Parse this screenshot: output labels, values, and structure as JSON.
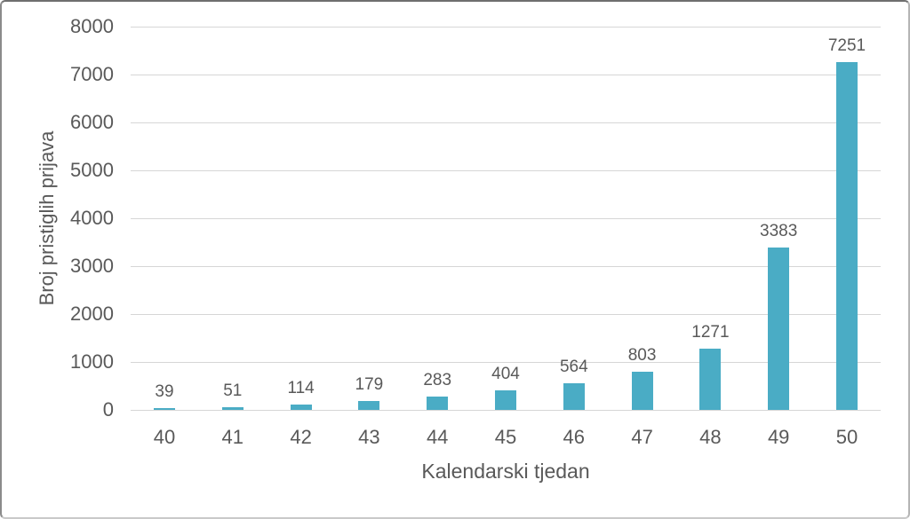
{
  "chart_data": {
    "type": "bar",
    "title": "",
    "xlabel": "Kalendarski tjedan",
    "ylabel": "Broj pristiglih prijava",
    "categories": [
      "40",
      "41",
      "42",
      "43",
      "44",
      "45",
      "46",
      "47",
      "48",
      "49",
      "50"
    ],
    "values": [
      39,
      51,
      114,
      179,
      283,
      404,
      564,
      803,
      1271,
      3383,
      7251
    ],
    "data_labels": [
      "39",
      "51",
      "114",
      "179",
      "283",
      "404",
      "564",
      "803",
      "1271",
      "3383",
      "7251"
    ],
    "ylim": [
      0,
      8000
    ],
    "ytick_step": 1000,
    "yticks": [
      "0",
      "1000",
      "2000",
      "3000",
      "4000",
      "5000",
      "6000",
      "7000",
      "8000"
    ],
    "grid": true,
    "legend": false,
    "colors": {
      "bar": "#4aacc5",
      "gridline": "#d6d6d6",
      "text": "#595959",
      "background": "#ffffff"
    }
  }
}
